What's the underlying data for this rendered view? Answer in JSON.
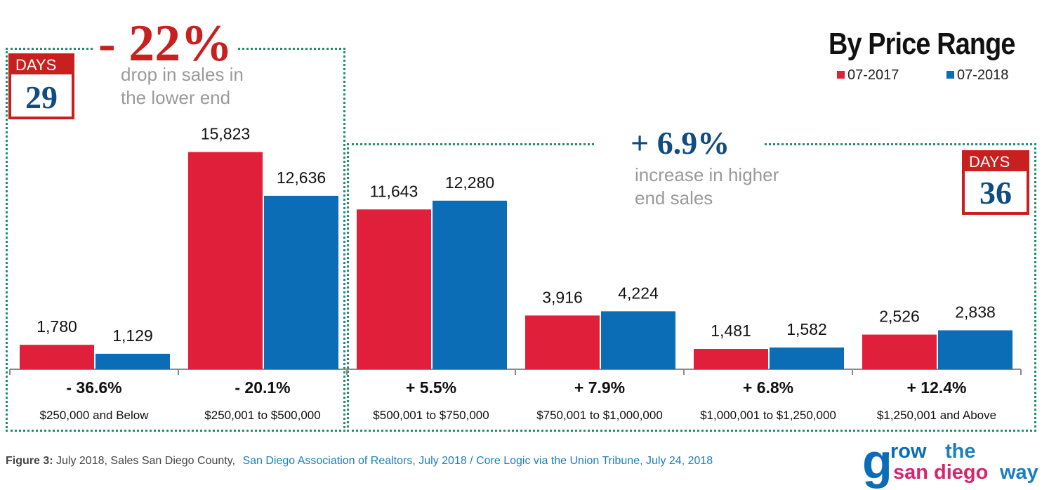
{
  "header": {
    "title": "By Price Range",
    "legend": [
      {
        "label": "07-2017",
        "color": "#e0203a"
      },
      {
        "label": "07-2018",
        "color": "#0a6db5"
      }
    ]
  },
  "callouts": {
    "lower": {
      "pct": "- 22%",
      "line1": "drop in sales in",
      "line2": "the lower end",
      "days_label": "DAYS",
      "days": "29"
    },
    "higher": {
      "pct": "+ 6.9%",
      "line1": "increase in higher",
      "line2": "end sales",
      "days_label": "DAYS",
      "days": "36"
    }
  },
  "chart_data": {
    "type": "bar",
    "title": "By Price Range",
    "categories": [
      "$250,000 and Below",
      "$250,001 to $500,000",
      "$500,001 to $750,000",
      "$750,001 to $1,000,000",
      "$1,000,001 to $1,250,000",
      "$1,250,001 and Above"
    ],
    "changes": [
      "- 36.6%",
      "- 20.1%",
      "+ 5.5%",
      "+ 7.9%",
      "+ 6.8%",
      "+ 12.4%"
    ],
    "series": [
      {
        "name": "07-2017",
        "color": "#e0203a",
        "values": [
          1780,
          15823,
          11643,
          3916,
          1481,
          2526
        ],
        "labels": [
          "1,780",
          "15,823",
          "11,643",
          "3,916",
          "1,481",
          "2,526"
        ]
      },
      {
        "name": "07-2018",
        "color": "#0a6db5",
        "values": [
          1129,
          12636,
          12280,
          4224,
          1582,
          2838
        ],
        "labels": [
          "1,129",
          "12,636",
          "12,280",
          "4,224",
          "1,582",
          "2,838"
        ]
      }
    ],
    "ylim": [
      0,
      18000
    ],
    "legend_position": "top-right",
    "grid": false
  },
  "footer": {
    "fig_label": "Figure 3:",
    "fig_text": " July 2018, Sales San Diego County,",
    "source1": "San Diego Association of Realtors, July 2018",
    "sep": " / ",
    "source2": "Core Logic via the Union Tribune, July 24, 2018"
  },
  "logo": {
    "word1": "grow",
    "word2": "the",
    "word3": "san diego",
    "word4": "way",
    "color_primary": "#0a6db5",
    "color_accent": "#d6246e"
  }
}
